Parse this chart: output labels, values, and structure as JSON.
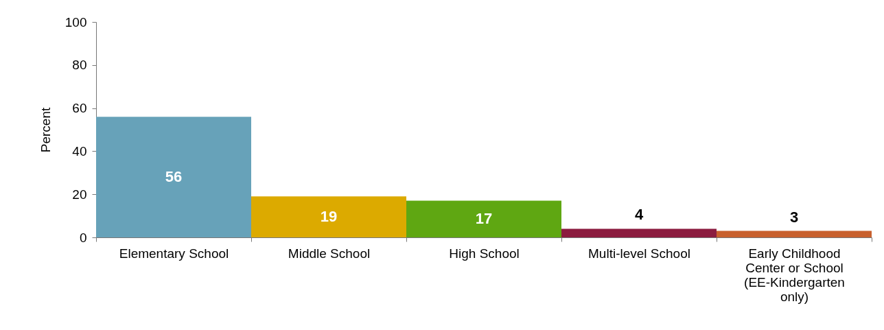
{
  "chart_data": {
    "type": "bar",
    "ylabel": "Percent",
    "categories": [
      "Elementary School",
      "Middle School",
      "High School",
      "Multi-level School",
      "Early Childhood Center or School (EE-Kindergarten only)"
    ],
    "values": [
      56,
      19,
      17,
      4,
      3
    ],
    "colors": [
      "#67a2b9",
      "#dcaa00",
      "#5fa712",
      "#8b1c3f",
      "#c8602e"
    ],
    "ylim": [
      0,
      100
    ],
    "yticks": [
      0,
      20,
      40,
      60,
      80,
      100
    ],
    "grid": false,
    "data_labels": true
  }
}
